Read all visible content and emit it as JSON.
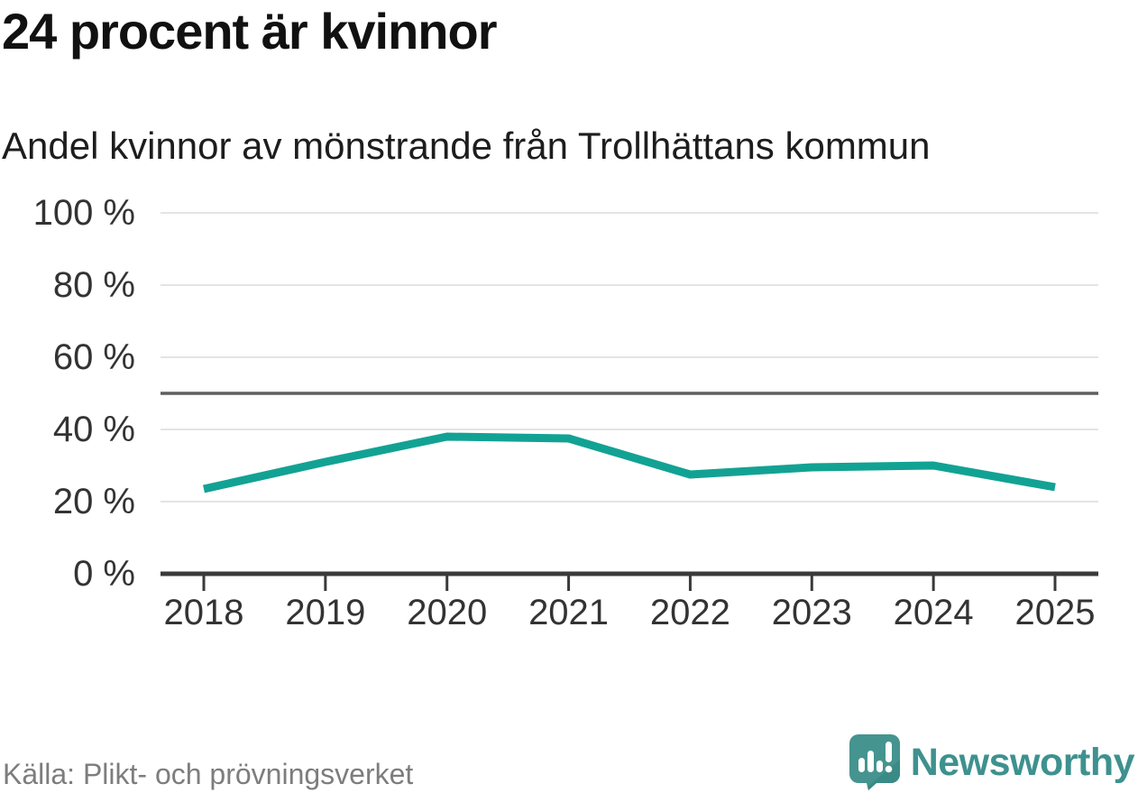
{
  "title": "24 procent är kvinnor",
  "subtitle": "Andel kvinnor av mönstrande från Trollhättans kommun",
  "source": "Källa: Plikt- och prövningsverket",
  "logo": {
    "text": "Newsworthy",
    "icon": "bar-chart-exclamation-bubble"
  },
  "colors": {
    "line": "#12a294",
    "grid": "#e4e4e4",
    "reference_line": "#5e5e5e",
    "axis": "#3a3a3a",
    "tick_text": "#333333",
    "muted_text": "#7d7d7d",
    "logo_mark": "#45948f",
    "logo_mark_shade": "#3a8a86",
    "logo_text": "#3e918e"
  },
  "chart_data": {
    "type": "line",
    "title": "24 procent är kvinnor",
    "subtitle": "Andel kvinnor av mönstrande från Trollhättans kommun",
    "series_name": "Andel kvinnor av mönstrande, Trollhättans kommun",
    "categories": [
      "2018",
      "2019",
      "2020",
      "2021",
      "2022",
      "2023",
      "2024",
      "2025"
    ],
    "values": [
      23.5,
      31,
      38,
      37.5,
      27.5,
      29.5,
      30,
      24
    ],
    "unit": "%",
    "ylim": [
      0,
      100
    ],
    "yticks": [
      {
        "value": 0,
        "label": "0 %"
      },
      {
        "value": 20,
        "label": "20 %"
      },
      {
        "value": 40,
        "label": "40 %"
      },
      {
        "value": 60,
        "label": "60 %"
      },
      {
        "value": 80,
        "label": "80 %"
      },
      {
        "value": 100,
        "label": "100 %"
      }
    ],
    "reference_line": 50,
    "grid": true,
    "legend": false
  }
}
